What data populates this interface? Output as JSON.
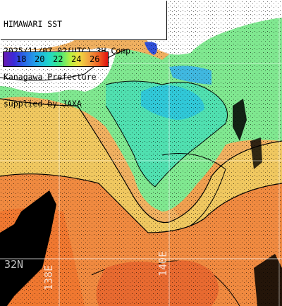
{
  "header": {
    "line1": "HIMAWARI SST",
    "line2": "2025/11/07 02(UTC) 3H Comp.",
    "line3": "Kanagawa Prefecture",
    "line4": "supplied by JAXA"
  },
  "colorbar": {
    "ticks": [
      "18",
      "20",
      "22",
      "24",
      "26"
    ]
  },
  "grid_labels": {
    "lat": "32N",
    "lon1": "138E",
    "lon2": "140E"
  },
  "colors": {
    "land": "#ffffff",
    "cloud": "#000000",
    "warm": "#f0a050",
    "cool": "#50e0b0",
    "hot": "#f07830"
  }
}
